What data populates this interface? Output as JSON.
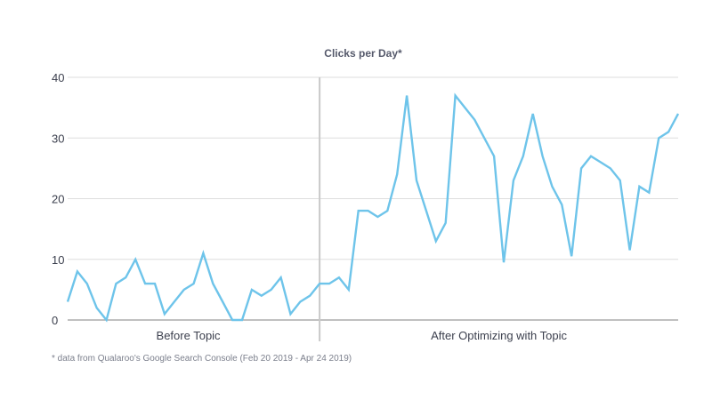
{
  "chart_data": {
    "type": "line",
    "title": "Clicks per Day*",
    "xlabel": "",
    "ylabel": "",
    "ylim": [
      0,
      40
    ],
    "yticks": [
      0,
      10,
      20,
      30,
      40
    ],
    "grid": true,
    "divider_after_index": 26,
    "regions": [
      "Before Topic",
      "After Optimizing with Topic"
    ],
    "footnote": "* data from Qualaroo's Google Search Console (Feb 20 2019 - Apr 24 2019)",
    "line_color": "#6ec4ea",
    "series": [
      {
        "values": [
          3,
          8,
          6,
          2,
          0,
          6,
          7,
          10,
          6,
          6,
          1,
          3,
          5,
          6,
          11,
          6,
          3,
          0,
          0,
          5,
          4,
          5,
          7,
          1,
          3,
          4,
          6,
          6,
          7,
          5,
          18,
          18,
          17,
          18,
          24,
          37,
          23,
          18,
          13,
          16,
          37,
          35,
          33,
          30,
          27,
          9.5,
          23,
          27,
          34,
          27,
          22,
          19,
          10.5,
          25,
          27,
          26,
          25,
          23,
          11.5,
          22,
          21,
          30,
          31,
          34
        ]
      }
    ]
  }
}
